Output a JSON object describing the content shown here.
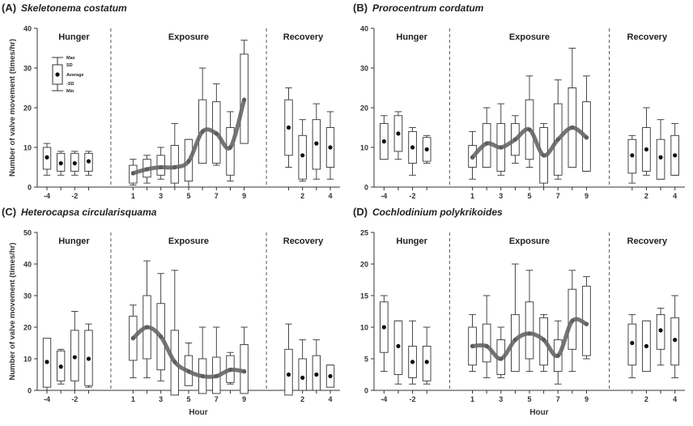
{
  "chart_data": [
    {
      "type": "box",
      "panel_label": "(A)",
      "title": "Skeletonema costatum",
      "ylabel": "Number of valve movement (times/hr)",
      "xlabel": "",
      "ylim": [
        0,
        40
      ],
      "yticks": [
        0,
        10,
        20,
        30,
        40
      ],
      "periods": [
        "Hunger",
        "Exposure",
        "Recovery"
      ],
      "xtick_labels": [
        "-4",
        "-2",
        "1",
        "3",
        "5",
        "7",
        "9",
        "2",
        "4"
      ],
      "legend": {
        "max": "Max",
        "sd_upper": "SD",
        "average": "Average",
        "sd_lower": "-SD",
        "min": "Min"
      },
      "boxes": [
        {
          "phase": "hunger",
          "x": -4,
          "avg": 7.5,
          "sd_low": 4.5,
          "sd_high": 10,
          "min": 3,
          "max": 11
        },
        {
          "phase": "hunger",
          "x": -3,
          "avg": 6,
          "sd_low": 4,
          "sd_high": 8.5,
          "min": 3,
          "max": 9
        },
        {
          "phase": "hunger",
          "x": -2,
          "avg": 6,
          "sd_low": 4,
          "sd_high": 8.5,
          "min": 3,
          "max": 9
        },
        {
          "phase": "hunger",
          "x": -1,
          "avg": 6.5,
          "sd_low": 4,
          "sd_high": 8.5,
          "min": 3,
          "max": 9
        },
        {
          "phase": "exposure",
          "x": 1,
          "avg": 3.5,
          "sd_low": 1,
          "sd_high": 5.5,
          "min": 0.5,
          "max": 7
        },
        {
          "phase": "exposure",
          "x": 2,
          "avg": 4.5,
          "sd_low": 2.5,
          "sd_high": 7,
          "min": 1,
          "max": 8
        },
        {
          "phase": "exposure",
          "x": 3,
          "avg": 5,
          "sd_low": 3,
          "sd_high": 8,
          "min": 2,
          "max": 10
        },
        {
          "phase": "exposure",
          "x": 4,
          "avg": 5,
          "sd_low": 1,
          "sd_high": 10.5,
          "min": 0,
          "max": 16
        },
        {
          "phase": "exposure",
          "x": 5,
          "avg": 6.5,
          "sd_low": 1.5,
          "sd_high": 12,
          "min": 0,
          "max": 12
        },
        {
          "phase": "exposure",
          "x": 6,
          "avg": 14,
          "sd_low": 6,
          "sd_high": 22,
          "min": 8,
          "max": 30
        },
        {
          "phase": "exposure",
          "x": 7,
          "avg": 13.5,
          "sd_low": 6,
          "sd_high": 21.5,
          "min": 5.5,
          "max": 26
        },
        {
          "phase": "exposure",
          "x": 8,
          "avg": 10,
          "sd_low": 3,
          "sd_high": 15,
          "min": 1.5,
          "max": 19
        },
        {
          "phase": "exposure",
          "x": 9,
          "avg": 22,
          "sd_low": 11,
          "sd_high": 33.5,
          "min": 11,
          "max": 37
        },
        {
          "phase": "recovery",
          "x": 1,
          "avg": 15,
          "sd_low": 8,
          "sd_high": 22,
          "min": 5,
          "max": 25
        },
        {
          "phase": "recovery",
          "x": 2,
          "avg": 8,
          "sd_low": 2,
          "sd_high": 13,
          "min": 1.5,
          "max": 17
        },
        {
          "phase": "recovery",
          "x": 3,
          "avg": 11,
          "sd_low": 4.5,
          "sd_high": 17,
          "min": 2,
          "max": 21
        },
        {
          "phase": "recovery",
          "x": 4,
          "avg": 10,
          "sd_low": 5,
          "sd_high": 15,
          "min": 2,
          "max": 19
        }
      ]
    },
    {
      "type": "box",
      "panel_label": "(B)",
      "title": "Prorocentrum cordatum",
      "ylabel": "",
      "xlabel": "",
      "ylim": [
        0,
        40
      ],
      "yticks": [
        0,
        10,
        20,
        30,
        40
      ],
      "periods": [
        "Hunger",
        "Exposure",
        "Recovery"
      ],
      "xtick_labels": [
        "-4",
        "-2",
        "1",
        "3",
        "5",
        "7",
        "9",
        "2",
        "4"
      ],
      "boxes": [
        {
          "phase": "hunger",
          "x": -4,
          "avg": 11.5,
          "sd_low": 7,
          "sd_high": 16,
          "min": 7,
          "max": 18
        },
        {
          "phase": "hunger",
          "x": -3,
          "avg": 13.5,
          "sd_low": 9,
          "sd_high": 18,
          "min": 7,
          "max": 19
        },
        {
          "phase": "hunger",
          "x": -2,
          "avg": 10,
          "sd_low": 6,
          "sd_high": 14,
          "min": 3,
          "max": 15
        },
        {
          "phase": "hunger",
          "x": -1,
          "avg": 9.5,
          "sd_low": 6.5,
          "sd_high": 12.5,
          "min": 6,
          "max": 13
        },
        {
          "phase": "exposure",
          "x": 1,
          "avg": 7.5,
          "sd_low": 5,
          "sd_high": 10.5,
          "min": 2,
          "max": 14
        },
        {
          "phase": "exposure",
          "x": 2,
          "avg": 11,
          "sd_low": 5,
          "sd_high": 16,
          "min": 5,
          "max": 20
        },
        {
          "phase": "exposure",
          "x": 3,
          "avg": 10,
          "sd_low": 4,
          "sd_high": 16,
          "min": 3,
          "max": 21
        },
        {
          "phase": "exposure",
          "x": 4,
          "avg": 12,
          "sd_low": 8,
          "sd_high": 16,
          "min": 6,
          "max": 18
        },
        {
          "phase": "exposure",
          "x": 5,
          "avg": 14.5,
          "sd_low": 7,
          "sd_high": 22,
          "min": 5,
          "max": 28
        },
        {
          "phase": "exposure",
          "x": 6,
          "avg": 8,
          "sd_low": 1,
          "sd_high": 15,
          "min": 0,
          "max": 16
        },
        {
          "phase": "exposure",
          "x": 7,
          "avg": 12,
          "sd_low": 3,
          "sd_high": 21,
          "min": 2,
          "max": 27
        },
        {
          "phase": "exposure",
          "x": 8,
          "avg": 15,
          "sd_low": 5,
          "sd_high": 25,
          "min": 7,
          "max": 35
        },
        {
          "phase": "exposure",
          "x": 9,
          "avg": 12.5,
          "sd_low": 4,
          "sd_high": 21.5,
          "min": 4,
          "max": 28
        },
        {
          "phase": "recovery",
          "x": 1,
          "avg": 8,
          "sd_low": 3.5,
          "sd_high": 12,
          "min": 1,
          "max": 13
        },
        {
          "phase": "recovery",
          "x": 2,
          "avg": 9.5,
          "sd_low": 4,
          "sd_high": 15,
          "min": 3,
          "max": 20
        },
        {
          "phase": "recovery",
          "x": 3,
          "avg": 7.5,
          "sd_low": 2,
          "sd_high": 12,
          "min": 2,
          "max": 17
        },
        {
          "phase": "recovery",
          "x": 4,
          "avg": 8,
          "sd_low": 3,
          "sd_high": 13,
          "min": 3,
          "max": 16
        }
      ]
    },
    {
      "type": "box",
      "panel_label": "(C)",
      "title": "Heterocapsa circularisquama",
      "ylabel": "Number of valve movement (times/hr)",
      "xlabel": "Hour",
      "ylim": [
        0,
        50
      ],
      "yticks": [
        0,
        10,
        20,
        30,
        40,
        50
      ],
      "periods": [
        "Hunger",
        "Exposure",
        "Recovery"
      ],
      "xtick_labels": [
        "-4",
        "-2",
        "1",
        "3",
        "5",
        "7",
        "9",
        "2",
        "4"
      ],
      "boxes": [
        {
          "phase": "hunger",
          "x": -4,
          "avg": 9,
          "sd_low": 1,
          "sd_high": 16.5,
          "min": 0,
          "max": 15
        },
        {
          "phase": "hunger",
          "x": -3,
          "avg": 7.5,
          "sd_low": 3,
          "sd_high": 12.5,
          "min": 2,
          "max": 13
        },
        {
          "phase": "hunger",
          "x": -2,
          "avg": 10.5,
          "sd_low": 3,
          "sd_high": 19,
          "min": 0,
          "max": 25
        },
        {
          "phase": "hunger",
          "x": -1,
          "avg": 10,
          "sd_low": 1.5,
          "sd_high": 19,
          "min": 1,
          "max": 21
        },
        {
          "phase": "exposure",
          "x": 1,
          "avg": 16.5,
          "sd_low": 9.5,
          "sd_high": 23.5,
          "min": 4,
          "max": 27
        },
        {
          "phase": "exposure",
          "x": 2,
          "avg": 20,
          "sd_low": 10,
          "sd_high": 30,
          "min": 4,
          "max": 41
        },
        {
          "phase": "exposure",
          "x": 3,
          "avg": 17,
          "sd_low": 6.5,
          "sd_high": 27.5,
          "min": 3,
          "max": 37
        },
        {
          "phase": "exposure",
          "x": 4,
          "avg": 9,
          "sd_low": -1.5,
          "sd_high": 19,
          "min": 0,
          "max": 38
        },
        {
          "phase": "exposure",
          "x": 5,
          "avg": 6,
          "sd_low": 1.5,
          "sd_high": 11,
          "min": 1.5,
          "max": 15
        },
        {
          "phase": "exposure",
          "x": 6,
          "avg": 4.5,
          "sd_low": -1,
          "sd_high": 10,
          "min": 0,
          "max": 20
        },
        {
          "phase": "exposure",
          "x": 7,
          "avg": 4.5,
          "sd_low": -1,
          "sd_high": 10.5,
          "min": 0,
          "max": 20
        },
        {
          "phase": "exposure",
          "x": 8,
          "avg": 6.5,
          "sd_low": 2.5,
          "sd_high": 11,
          "min": 2,
          "max": 12
        },
        {
          "phase": "exposure",
          "x": 9,
          "avg": 6,
          "sd_low": -1,
          "sd_high": 14.5,
          "min": 0,
          "max": 20
        },
        {
          "phase": "recovery",
          "x": 1,
          "avg": 5,
          "sd_low": -1.5,
          "sd_high": 13,
          "min": 0,
          "max": 21
        },
        {
          "phase": "recovery",
          "x": 2,
          "avg": 4,
          "sd_low": 0,
          "sd_high": 10,
          "min": 0,
          "max": 16
        },
        {
          "phase": "recovery",
          "x": 3,
          "avg": 5,
          "sd_low": 0,
          "sd_high": 11,
          "min": 0,
          "max": 16
        },
        {
          "phase": "recovery",
          "x": 4,
          "avg": 4.5,
          "sd_low": 1,
          "sd_high": 8,
          "min": 1,
          "max": 8
        }
      ]
    },
    {
      "type": "box",
      "panel_label": "(D)",
      "title": "Cochlodinium polykrikoides",
      "ylabel": "",
      "xlabel": "Hour",
      "ylim": [
        0,
        25
      ],
      "yticks": [
        0,
        5,
        10,
        15,
        20,
        25
      ],
      "periods": [
        "Hunger",
        "Exposure",
        "Recovery"
      ],
      "xtick_labels": [
        "-4",
        "-2",
        "1",
        "3",
        "5",
        "7",
        "9",
        "2",
        "4"
      ],
      "boxes": [
        {
          "phase": "hunger",
          "x": -4,
          "avg": 10,
          "sd_low": 6,
          "sd_high": 14,
          "min": 3,
          "max": 15
        },
        {
          "phase": "hunger",
          "x": -3,
          "avg": 7,
          "sd_low": 2.5,
          "sd_high": 11,
          "min": 1,
          "max": 11
        },
        {
          "phase": "hunger",
          "x": -2,
          "avg": 4.5,
          "sd_low": 2,
          "sd_high": 7,
          "min": 1,
          "max": 11
        },
        {
          "phase": "hunger",
          "x": -1,
          "avg": 4.5,
          "sd_low": 1.5,
          "sd_high": 7,
          "min": 1,
          "max": 10
        },
        {
          "phase": "exposure",
          "x": 1,
          "avg": 7,
          "sd_low": 4,
          "sd_high": 10,
          "min": 3,
          "max": 12
        },
        {
          "phase": "exposure",
          "x": 2,
          "avg": 7,
          "sd_low": 4.5,
          "sd_high": 10.5,
          "min": 2,
          "max": 15
        },
        {
          "phase": "exposure",
          "x": 3,
          "avg": 5,
          "sd_low": 2.5,
          "sd_high": 8,
          "min": 2,
          "max": 10
        },
        {
          "phase": "exposure",
          "x": 4,
          "avg": 8,
          "sd_low": 3,
          "sd_high": 12,
          "min": 3,
          "max": 20
        },
        {
          "phase": "exposure",
          "x": 5,
          "avg": 9,
          "sd_low": 5,
          "sd_high": 14,
          "min": 3,
          "max": 19
        },
        {
          "phase": "exposure",
          "x": 6,
          "avg": 8,
          "sd_low": 4,
          "sd_high": 11.5,
          "min": 3,
          "max": 12
        },
        {
          "phase": "exposure",
          "x": 7,
          "avg": 5.5,
          "sd_low": 3,
          "sd_high": 8,
          "min": 1,
          "max": 11
        },
        {
          "phase": "exposure",
          "x": 8,
          "avg": 11,
          "sd_low": 6.5,
          "sd_high": 16,
          "min": 3,
          "max": 19
        },
        {
          "phase": "exposure",
          "x": 9,
          "avg": 10.5,
          "sd_low": 5.5,
          "sd_high": 16.5,
          "min": 5,
          "max": 18
        },
        {
          "phase": "recovery",
          "x": 1,
          "avg": 7.5,
          "sd_low": 4,
          "sd_high": 10.5,
          "min": 2,
          "max": 12
        },
        {
          "phase": "recovery",
          "x": 2,
          "avg": 7,
          "sd_low": 3,
          "sd_high": 11,
          "min": 3,
          "max": 11
        },
        {
          "phase": "recovery",
          "x": 3,
          "avg": 9.5,
          "sd_low": 6.5,
          "sd_high": 12,
          "min": 4,
          "max": 13
        },
        {
          "phase": "recovery",
          "x": 4,
          "avg": 8,
          "sd_low": 4,
          "sd_high": 11.5,
          "min": 2,
          "max": 15
        }
      ]
    }
  ]
}
